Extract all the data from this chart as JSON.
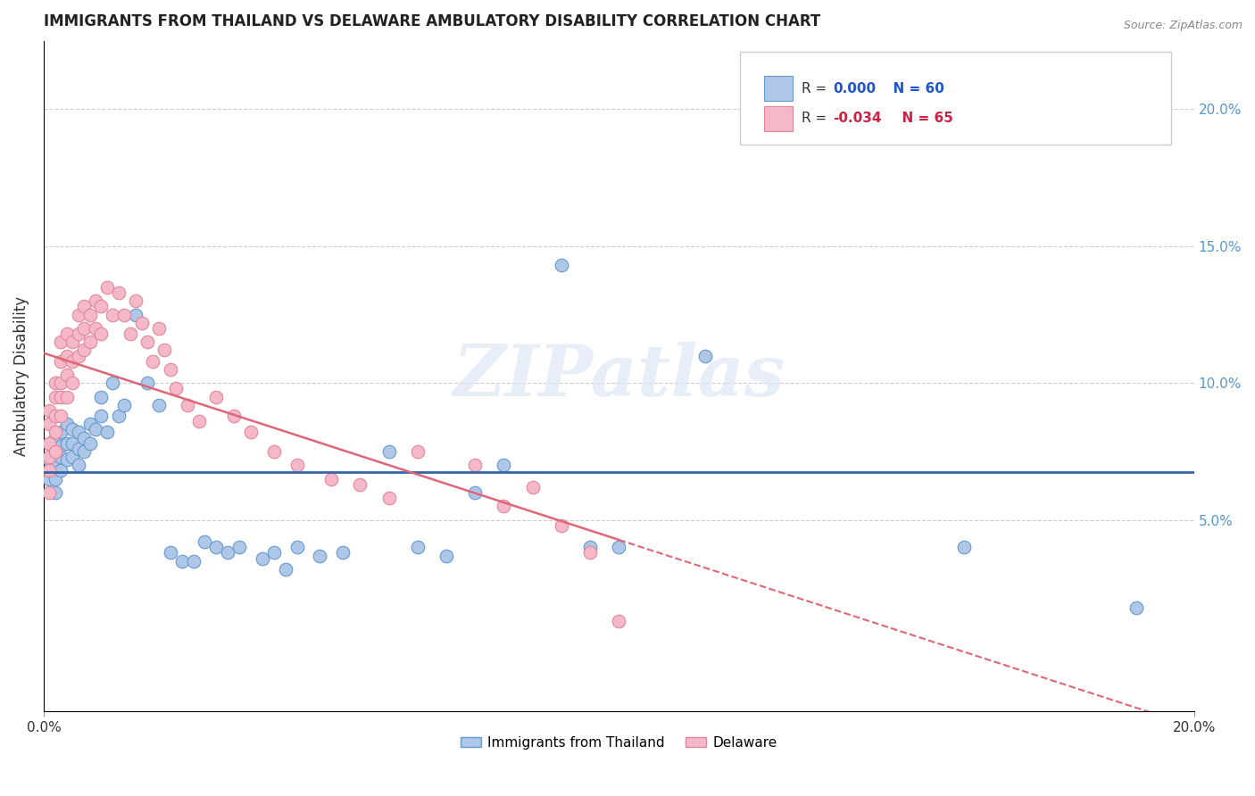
{
  "title": "IMMIGRANTS FROM THAILAND VS DELAWARE AMBULATORY DISABILITY CORRELATION CHART",
  "source": "Source: ZipAtlas.com",
  "ylabel": "Ambulatory Disability",
  "watermark_text": "ZIPatlas",
  "xlim": [
    0.0,
    0.2
  ],
  "ylim": [
    -0.02,
    0.225
  ],
  "yticks": [
    0.05,
    0.1,
    0.15,
    0.2
  ],
  "xtick_positions": [
    0.0,
    0.2
  ],
  "xtick_labels": [
    "0.0%",
    "20.0%"
  ],
  "ytick_labels_right": [
    "5.0%",
    "10.0%",
    "15.0%",
    "20.0%"
  ],
  "grid_color": "#cccccc",
  "background_color": "#ffffff",
  "series1_color": "#aec6e8",
  "series2_color": "#f4b8c8",
  "series1_edge_color": "#6699cc",
  "series2_edge_color": "#e08898",
  "trend1_color": "#3366aa",
  "trend2_color": "#dd6677",
  "right_tick_color": "#5599cc",
  "legend_R1_color": "#2255cc",
  "legend_R2_color": "#cc2244",
  "series1_label": "Immigrants from Thailand",
  "series2_label": "Delaware",
  "legend_line1": "R =  0.000   N = 60",
  "legend_line2": "R = -0.034   N = 65",
  "scatter1_x": [
    0.001,
    0.001,
    0.001,
    0.001,
    0.002,
    0.002,
    0.002,
    0.002,
    0.002,
    0.003,
    0.003,
    0.003,
    0.003,
    0.004,
    0.004,
    0.004,
    0.005,
    0.005,
    0.005,
    0.006,
    0.006,
    0.006,
    0.007,
    0.007,
    0.008,
    0.008,
    0.009,
    0.01,
    0.01,
    0.011,
    0.012,
    0.013,
    0.014,
    0.016,
    0.018,
    0.02,
    0.022,
    0.024,
    0.026,
    0.028,
    0.03,
    0.032,
    0.034,
    0.038,
    0.04,
    0.042,
    0.044,
    0.048,
    0.052,
    0.06,
    0.065,
    0.07,
    0.075,
    0.08,
    0.09,
    0.095,
    0.1,
    0.115,
    0.16,
    0.19
  ],
  "scatter1_y": [
    0.078,
    0.072,
    0.068,
    0.065,
    0.08,
    0.075,
    0.07,
    0.065,
    0.06,
    0.082,
    0.077,
    0.073,
    0.068,
    0.085,
    0.078,
    0.072,
    0.083,
    0.078,
    0.073,
    0.082,
    0.076,
    0.07,
    0.08,
    0.075,
    0.085,
    0.078,
    0.083,
    0.095,
    0.088,
    0.082,
    0.1,
    0.088,
    0.092,
    0.125,
    0.1,
    0.092,
    0.038,
    0.035,
    0.035,
    0.042,
    0.04,
    0.038,
    0.04,
    0.036,
    0.038,
    0.032,
    0.04,
    0.037,
    0.038,
    0.075,
    0.04,
    0.037,
    0.06,
    0.07,
    0.143,
    0.04,
    0.04,
    0.11,
    0.04,
    0.018
  ],
  "scatter2_x": [
    0.001,
    0.001,
    0.001,
    0.001,
    0.001,
    0.001,
    0.002,
    0.002,
    0.002,
    0.002,
    0.002,
    0.003,
    0.003,
    0.003,
    0.003,
    0.003,
    0.004,
    0.004,
    0.004,
    0.004,
    0.005,
    0.005,
    0.005,
    0.006,
    0.006,
    0.006,
    0.007,
    0.007,
    0.007,
    0.008,
    0.008,
    0.009,
    0.009,
    0.01,
    0.01,
    0.011,
    0.012,
    0.013,
    0.014,
    0.015,
    0.016,
    0.017,
    0.018,
    0.019,
    0.02,
    0.021,
    0.022,
    0.023,
    0.025,
    0.027,
    0.03,
    0.033,
    0.036,
    0.04,
    0.044,
    0.05,
    0.055,
    0.06,
    0.065,
    0.075,
    0.08,
    0.085,
    0.09,
    0.095,
    0.1
  ],
  "scatter2_y": [
    0.09,
    0.085,
    0.078,
    0.073,
    0.068,
    0.06,
    0.1,
    0.095,
    0.088,
    0.082,
    0.075,
    0.115,
    0.108,
    0.1,
    0.095,
    0.088,
    0.118,
    0.11,
    0.103,
    0.095,
    0.115,
    0.108,
    0.1,
    0.125,
    0.118,
    0.11,
    0.128,
    0.12,
    0.112,
    0.125,
    0.115,
    0.13,
    0.12,
    0.128,
    0.118,
    0.135,
    0.125,
    0.133,
    0.125,
    0.118,
    0.13,
    0.122,
    0.115,
    0.108,
    0.12,
    0.112,
    0.105,
    0.098,
    0.092,
    0.086,
    0.095,
    0.088,
    0.082,
    0.075,
    0.07,
    0.065,
    0.063,
    0.058,
    0.075,
    0.07,
    0.055,
    0.062,
    0.048,
    0.038,
    0.013
  ]
}
